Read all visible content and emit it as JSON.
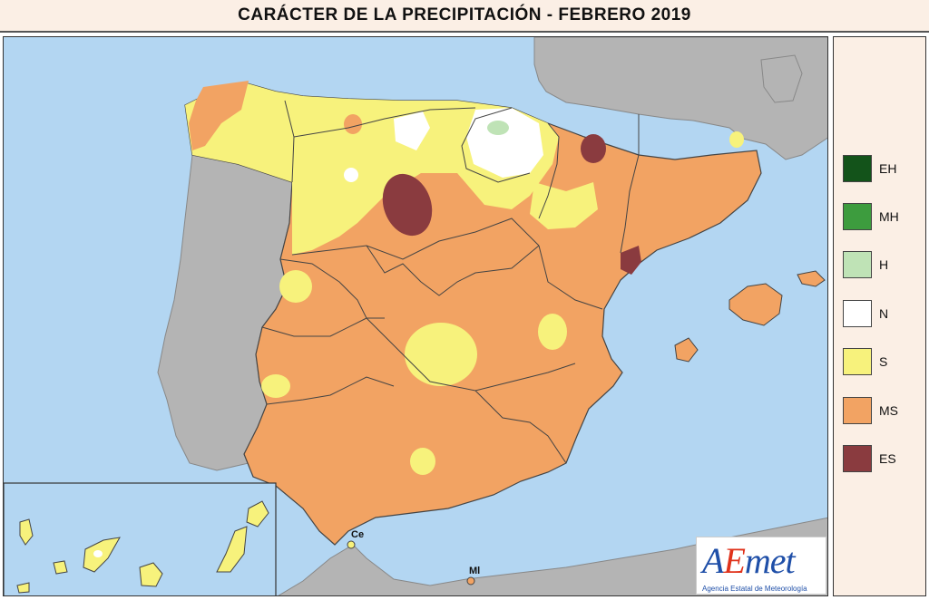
{
  "title": "CARÁCTER DE LA PRECIPITACIÓN - FEBRERO 2019",
  "colors": {
    "sea": "#b3d6f2",
    "other_land": "#b4b4b4",
    "EH": "#13531a",
    "MH": "#3d9c3e",
    "H": "#bfe3b6",
    "N": "#ffffff",
    "S": "#f7f27c",
    "MS": "#f2a363",
    "ES": "#8a3b3f"
  },
  "legend": [
    {
      "code": "EH",
      "color": "#13531a"
    },
    {
      "code": "MH",
      "color": "#3d9c3e"
    },
    {
      "code": "H",
      "color": "#bfe3b6"
    },
    {
      "code": "N",
      "color": "#ffffff"
    },
    {
      "code": "S",
      "color": "#f7f27c"
    },
    {
      "code": "MS",
      "color": "#f2a363"
    },
    {
      "code": "ES",
      "color": "#8a3b3f"
    }
  ],
  "cities": {
    "ceuta": "Ce",
    "melilla": "Ml"
  },
  "logo": {
    "text_pre": "A",
    "text_e": "E",
    "text_post": "met",
    "subtitle": "Agencia Estatal de Meteorología"
  }
}
